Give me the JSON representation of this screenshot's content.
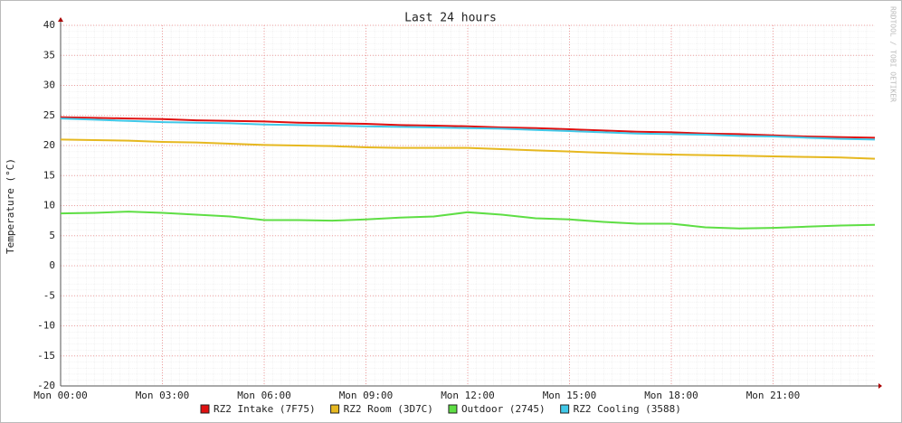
{
  "chart_data": {
    "type": "line",
    "title": "Last 24 hours",
    "ylabel": "Temperature (°C)",
    "side_note": "RRDTOOL / TOBI OETIKER",
    "x": [
      0,
      1,
      2,
      3,
      4,
      5,
      6,
      7,
      8,
      9,
      10,
      11,
      12,
      13,
      14,
      15,
      16,
      17,
      18,
      19,
      20,
      21,
      22,
      23,
      24
    ],
    "xlim": [
      0,
      24
    ],
    "xticks": [
      {
        "value": 0,
        "label": "Mon 00:00"
      },
      {
        "value": 3,
        "label": "Mon 03:00"
      },
      {
        "value": 6,
        "label": "Mon 06:00"
      },
      {
        "value": 9,
        "label": "Mon 09:00"
      },
      {
        "value": 12,
        "label": "Mon 12:00"
      },
      {
        "value": 15,
        "label": "Mon 15:00"
      },
      {
        "value": 18,
        "label": "Mon 18:00"
      },
      {
        "value": 21,
        "label": "Mon 21:00"
      }
    ],
    "ylim": [
      -20,
      40
    ],
    "yticks": [
      -20,
      -15,
      -10,
      -5,
      0,
      5,
      10,
      15,
      20,
      25,
      30,
      35,
      40
    ],
    "grid": true,
    "series": [
      {
        "name": "RZ2 Intake (7F75)",
        "color": "#e01010",
        "values": [
          24.7,
          24.6,
          24.5,
          24.4,
          24.2,
          24.1,
          24.0,
          23.8,
          23.7,
          23.6,
          23.4,
          23.3,
          23.2,
          23.0,
          22.9,
          22.7,
          22.5,
          22.3,
          22.2,
          22.0,
          21.9,
          21.7,
          21.5,
          21.4,
          21.3
        ]
      },
      {
        "name": "RZ2 Room (3D7C)",
        "color": "#e6b820",
        "values": [
          21.0,
          20.9,
          20.8,
          20.6,
          20.5,
          20.3,
          20.1,
          20.0,
          19.9,
          19.7,
          19.6,
          19.6,
          19.6,
          19.4,
          19.2,
          19.0,
          18.8,
          18.6,
          18.5,
          18.4,
          18.3,
          18.2,
          18.1,
          18.0,
          17.8
        ]
      },
      {
        "name": "Outdoor (2745)",
        "color": "#5ede44",
        "values": [
          8.7,
          8.8,
          9.0,
          8.8,
          8.5,
          8.2,
          7.6,
          7.6,
          7.5,
          7.7,
          8.0,
          8.2,
          8.9,
          8.5,
          7.9,
          7.7,
          7.3,
          7.0,
          7.0,
          6.4,
          6.2,
          6.3,
          6.5,
          6.7,
          6.8
        ]
      },
      {
        "name": "RZ2 Cooling (3588)",
        "color": "#40c8e8",
        "values": [
          24.5,
          24.3,
          24.1,
          23.9,
          23.8,
          23.7,
          23.5,
          23.4,
          23.3,
          23.2,
          23.1,
          23.0,
          22.9,
          22.8,
          22.6,
          22.4,
          22.2,
          22.0,
          21.9,
          21.8,
          21.6,
          21.5,
          21.3,
          21.1,
          21.0
        ]
      }
    ]
  }
}
